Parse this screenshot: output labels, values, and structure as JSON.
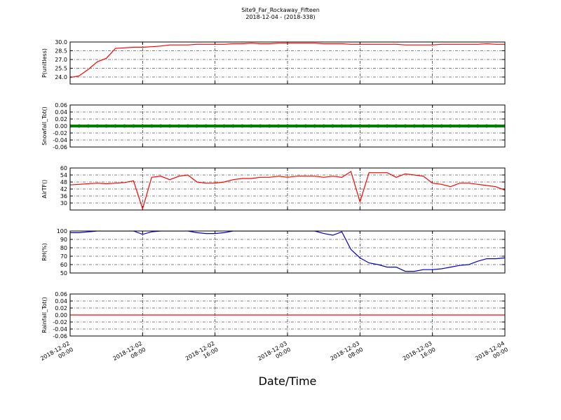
{
  "title": "Site9_Far_Rockaway_Fifteen",
  "subtitle": "2018-12-04 - (2018-338)",
  "xlabel": "Date/Time",
  "xlim": [
    "2018-12-02 00:00",
    "2018-12-04 00:00"
  ],
  "xticks": [
    "2018-12-02 00:00",
    "2018-12-02 08:00",
    "2018-12-02 16:00",
    "2018-12-03 00:00",
    "2018-12-03 08:00",
    "2018-12-03 16:00",
    "2018-12-04 00:00"
  ],
  "x": [
    "2018-12-02 00:00",
    "2018-12-02 01:00",
    "2018-12-02 02:00",
    "2018-12-02 03:00",
    "2018-12-02 04:00",
    "2018-12-02 05:00",
    "2018-12-02 06:00",
    "2018-12-02 07:00",
    "2018-12-02 08:00",
    "2018-12-02 09:00",
    "2018-12-02 10:00",
    "2018-12-02 11:00",
    "2018-12-02 12:00",
    "2018-12-02 13:00",
    "2018-12-02 14:00",
    "2018-12-02 15:00",
    "2018-12-02 16:00",
    "2018-12-02 17:00",
    "2018-12-02 18:00",
    "2018-12-02 19:00",
    "2018-12-02 20:00",
    "2018-12-02 21:00",
    "2018-12-02 22:00",
    "2018-12-02 23:00",
    "2018-12-03 00:00",
    "2018-12-03 01:00",
    "2018-12-03 02:00",
    "2018-12-03 03:00",
    "2018-12-03 04:00",
    "2018-12-03 05:00",
    "2018-12-03 06:00",
    "2018-12-03 07:00",
    "2018-12-03 08:00",
    "2018-12-03 09:00",
    "2018-12-03 10:00",
    "2018-12-03 11:00",
    "2018-12-03 12:00",
    "2018-12-03 13:00",
    "2018-12-03 14:00",
    "2018-12-03 15:00",
    "2018-12-03 16:00",
    "2018-12-03 17:00",
    "2018-12-03 18:00",
    "2018-12-03 19:00",
    "2018-12-03 20:00",
    "2018-12-03 21:00",
    "2018-12-03 22:00",
    "2018-12-03 23:00",
    "2018-12-04 00:00"
  ],
  "chart_data": [
    {
      "type": "line",
      "ylabel": "P(unitless)",
      "color": "#ff0000",
      "grid": true,
      "ylim": [
        22.8,
        30.0
      ],
      "yticks": [
        {
          "value": 24,
          "label": "24.0"
        },
        25.5,
        {
          "value": 27,
          "label": "27.0"
        },
        28.5,
        {
          "value": 30,
          "label": "30.0"
        }
      ],
      "values": [
        23.9,
        24.2,
        25.3,
        26.6,
        27.2,
        28.9,
        29.0,
        29.1,
        29.1,
        29.2,
        29.3,
        29.5,
        29.5,
        29.5,
        29.6,
        29.6,
        29.6,
        29.6,
        29.7,
        29.7,
        29.8,
        29.7,
        29.7,
        29.8,
        29.8,
        29.8,
        29.8,
        29.8,
        29.7,
        29.7,
        29.7,
        29.6,
        29.6,
        29.6,
        29.6,
        29.6,
        29.6,
        29.5,
        29.5,
        29.5,
        29.5,
        29.6,
        29.6,
        29.6,
        29.6,
        29.6,
        29.7,
        29.6,
        29.6
      ]
    },
    {
      "type": "scatter",
      "ylabel": "Snowfall_Tot()",
      "color": "#008000",
      "grid": true,
      "ylim": [
        -0.06,
        0.06
      ],
      "yticks": [
        -0.06,
        -0.04,
        -0.02,
        {
          "value": 0,
          "label": "0.00"
        },
        0.02,
        0.04,
        0.06
      ],
      "values": [
        0,
        0,
        0,
        0,
        0,
        0,
        0,
        0,
        0,
        0,
        0,
        0,
        0,
        0,
        0,
        0,
        0,
        0,
        0,
        0,
        0,
        0,
        0,
        0,
        0,
        0,
        0,
        0,
        0,
        0,
        0,
        0,
        0,
        0,
        0,
        0,
        0,
        0,
        0,
        0,
        0,
        0,
        0,
        0,
        0,
        0,
        0,
        0,
        0
      ]
    },
    {
      "type": "line",
      "ylabel": "AirTF()",
      "color": "#ff0000",
      "grid": true,
      "ylim": [
        24,
        60
      ],
      "yticks": [
        30,
        36,
        42,
        48,
        54,
        60
      ],
      "values": [
        45.5,
        46,
        46.5,
        47,
        46.5,
        47,
        47.5,
        49,
        25,
        52,
        53,
        50,
        53,
        54,
        48,
        47,
        47,
        48,
        50,
        51,
        51,
        52,
        52,
        53,
        52,
        53,
        53,
        53,
        52,
        53,
        52,
        57,
        31,
        56,
        56,
        56,
        52,
        55,
        54,
        53,
        47,
        46,
        44,
        47,
        47,
        46,
        45,
        44,
        41
      ]
    },
    {
      "type": "line",
      "ylabel": "RH(%)",
      "color": "#0000cc",
      "grid": true,
      "ylim": [
        50,
        100
      ],
      "yticks": [
        50,
        60,
        70,
        80,
        90,
        100
      ],
      "values": [
        98,
        98,
        99,
        100,
        100,
        100,
        100,
        100,
        96,
        99,
        100,
        100,
        100,
        100,
        98,
        97,
        97,
        98,
        100,
        100,
        100,
        100,
        100,
        100,
        100,
        100,
        100,
        100,
        97,
        95,
        99,
        78,
        68,
        62,
        60,
        57,
        57,
        52,
        52,
        54,
        54,
        55,
        57,
        59,
        60,
        64,
        67,
        67,
        68
      ]
    },
    {
      "type": "line",
      "ylabel": "Rainfall_Tot()",
      "color": "#ff0000",
      "grid": true,
      "ylim": [
        -0.06,
        0.06
      ],
      "yticks": [
        -0.06,
        -0.04,
        -0.02,
        {
          "value": 0,
          "label": "0.00"
        },
        0.02,
        0.04,
        0.06
      ],
      "values": [
        0,
        0,
        0,
        0,
        0,
        0,
        0,
        0,
        0,
        0,
        0,
        0,
        0,
        0,
        0,
        0,
        0,
        0,
        0,
        0,
        0,
        0,
        0,
        0,
        0,
        0,
        0,
        0,
        0,
        0,
        0,
        0,
        0,
        0,
        0,
        0,
        0,
        0,
        0,
        0,
        0,
        0,
        0,
        0,
        0,
        0,
        0,
        0,
        0
      ]
    }
  ]
}
